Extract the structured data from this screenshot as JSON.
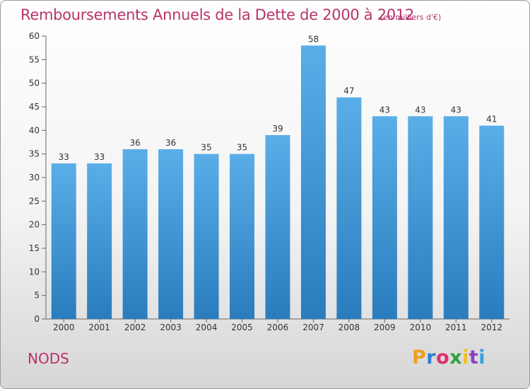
{
  "chart_data": {
    "type": "bar",
    "title": "Remboursements Annuels de la Dette de 2000 à 2012",
    "subtitle": "(en milliers d'€)",
    "xlabel": "",
    "ylabel": "",
    "categories": [
      "2000",
      "2001",
      "2002",
      "2003",
      "2004",
      "2005",
      "2006",
      "2007",
      "2008",
      "2009",
      "2010",
      "2011",
      "2012"
    ],
    "values": [
      33,
      33,
      36,
      36,
      35,
      35,
      39,
      58,
      47,
      43,
      43,
      43,
      41
    ],
    "ylim": [
      0,
      60
    ],
    "yticks": [
      0,
      5,
      10,
      15,
      20,
      25,
      30,
      35,
      40,
      45,
      50,
      55,
      60
    ],
    "grid": false,
    "bar_color_top": "#5aaee8",
    "bar_color_bottom": "#2a7cbd"
  },
  "footer": {
    "commune": "NODS",
    "logo_letters": [
      "P",
      "r",
      "o",
      "x",
      "i",
      "t",
      "i"
    ],
    "logo_colors": [
      "#f0a020",
      "#2f7fd0",
      "#e03070",
      "#30a040",
      "#f0c020",
      "#8a40c0",
      "#30a0e0"
    ]
  }
}
